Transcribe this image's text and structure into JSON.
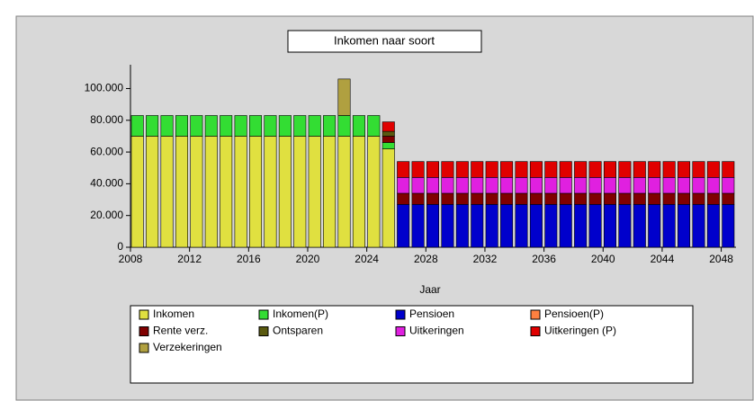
{
  "chart_data": {
    "type": "bar",
    "title": "Inkomen naar soort",
    "x_label": "Jaar",
    "x": [
      2008,
      2009,
      2010,
      2011,
      2012,
      2013,
      2014,
      2015,
      2016,
      2017,
      2018,
      2019,
      2020,
      2021,
      2022,
      2023,
      2024,
      2025,
      2026,
      2027,
      2028,
      2029,
      2030,
      2031,
      2032,
      2033,
      2034,
      2035,
      2036,
      2037,
      2038,
      2039,
      2040,
      2041,
      2042,
      2043,
      2044,
      2045,
      2046,
      2047,
      2048
    ],
    "xlim": [
      2008,
      2049
    ],
    "xticks": [
      2008,
      2012,
      2016,
      2020,
      2024,
      2028,
      2032,
      2036,
      2040,
      2044,
      2048
    ],
    "ylim": [
      0,
      115000
    ],
    "yticks": [
      0,
      {
        "value": 20000,
        "label": "20.000"
      },
      {
        "value": 40000,
        "label": "40.000"
      },
      {
        "value": 60000,
        "label": "60.000"
      },
      {
        "value": 80000,
        "label": "80.000"
      },
      {
        "value": 100000,
        "label": "100.000"
      }
    ],
    "stacked": true,
    "series": [
      {
        "name": "Inkomen",
        "color": "#e0e040",
        "values": [
          70000,
          70000,
          70000,
          70000,
          70000,
          70000,
          70000,
          70000,
          70000,
          70000,
          70000,
          70000,
          70000,
          70000,
          70000,
          70000,
          70000,
          62000,
          0,
          0,
          0,
          0,
          0,
          0,
          0,
          0,
          0,
          0,
          0,
          0,
          0,
          0,
          0,
          0,
          0,
          0,
          0,
          0,
          0,
          0,
          0
        ]
      },
      {
        "name": "Inkomen(P)",
        "color": "#33dd33",
        "values": [
          13000,
          13000,
          13000,
          13000,
          13000,
          13000,
          13000,
          13000,
          13000,
          13000,
          13000,
          13000,
          13000,
          13000,
          13000,
          13000,
          13000,
          4000,
          0,
          0,
          0,
          0,
          0,
          0,
          0,
          0,
          0,
          0,
          0,
          0,
          0,
          0,
          0,
          0,
          0,
          0,
          0,
          0,
          0,
          0,
          0
        ]
      },
      {
        "name": "Pensioen",
        "color": "#0000cc",
        "values": [
          0,
          0,
          0,
          0,
          0,
          0,
          0,
          0,
          0,
          0,
          0,
          0,
          0,
          0,
          0,
          0,
          0,
          0,
          27000,
          27000,
          27000,
          27000,
          27000,
          27000,
          27000,
          27000,
          27000,
          27000,
          27000,
          27000,
          27000,
          27000,
          27000,
          27000,
          27000,
          27000,
          27000,
          27000,
          27000,
          27000,
          27000
        ]
      },
      {
        "name": "Pensioen(P)",
        "color": "#ff8040",
        "values": [
          0,
          0,
          0,
          0,
          0,
          0,
          0,
          0,
          0,
          0,
          0,
          0,
          0,
          0,
          0,
          0,
          0,
          0,
          0,
          0,
          0,
          0,
          0,
          0,
          0,
          0,
          0,
          0,
          0,
          0,
          0,
          0,
          0,
          0,
          0,
          0,
          0,
          0,
          0,
          0,
          0
        ]
      },
      {
        "name": "Rente verz.",
        "color": "#800000",
        "values": [
          0,
          0,
          0,
          0,
          0,
          0,
          0,
          0,
          0,
          0,
          0,
          0,
          0,
          0,
          0,
          0,
          0,
          4000,
          7000,
          7000,
          7000,
          7000,
          7000,
          7000,
          7000,
          7000,
          7000,
          7000,
          7000,
          7000,
          7000,
          7000,
          7000,
          7000,
          7000,
          7000,
          7000,
          7000,
          7000,
          7000,
          7000
        ]
      },
      {
        "name": "Ontsparen",
        "color": "#5a5a10",
        "values": [
          0,
          0,
          0,
          0,
          0,
          0,
          0,
          0,
          0,
          0,
          0,
          0,
          0,
          0,
          0,
          0,
          0,
          3000,
          0,
          0,
          0,
          0,
          0,
          0,
          0,
          0,
          0,
          0,
          0,
          0,
          0,
          0,
          0,
          0,
          0,
          0,
          0,
          0,
          0,
          0,
          0
        ]
      },
      {
        "name": "Uitkeringen",
        "color": "#e020e0",
        "values": [
          0,
          0,
          0,
          0,
          0,
          0,
          0,
          0,
          0,
          0,
          0,
          0,
          0,
          0,
          0,
          0,
          0,
          0,
          10000,
          10000,
          10000,
          10000,
          10000,
          10000,
          10000,
          10000,
          10000,
          10000,
          10000,
          10000,
          10000,
          10000,
          10000,
          10000,
          10000,
          10000,
          10000,
          10000,
          10000,
          10000,
          10000
        ]
      },
      {
        "name": "Uitkeringen (P)",
        "color": "#e00000",
        "values": [
          0,
          0,
          0,
          0,
          0,
          0,
          0,
          0,
          0,
          0,
          0,
          0,
          0,
          0,
          0,
          0,
          0,
          6000,
          10000,
          10000,
          10000,
          10000,
          10000,
          10000,
          10000,
          10000,
          10000,
          10000,
          10000,
          10000,
          10000,
          10000,
          10000,
          10000,
          10000,
          10000,
          10000,
          10000,
          10000,
          10000,
          10000
        ]
      },
      {
        "name": "Verzekeringen",
        "color": "#b0a040",
        "values": [
          0,
          0,
          0,
          0,
          0,
          0,
          0,
          0,
          0,
          0,
          0,
          0,
          0,
          0,
          23000,
          0,
          0,
          0,
          0,
          0,
          0,
          0,
          0,
          0,
          0,
          0,
          0,
          0,
          0,
          0,
          0,
          0,
          0,
          0,
          0,
          0,
          0,
          0,
          0,
          0,
          0
        ]
      }
    ]
  }
}
